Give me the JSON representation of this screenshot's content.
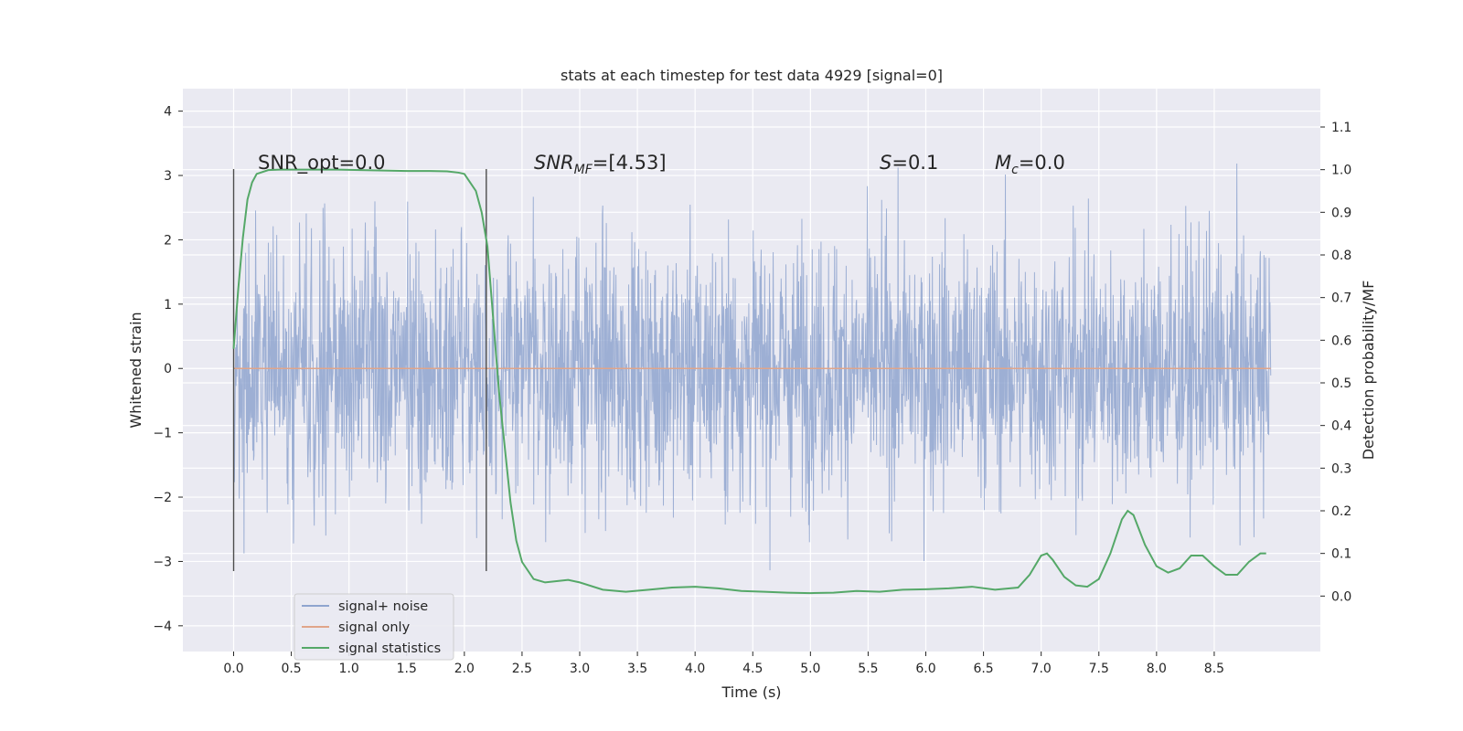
{
  "chart_data": {
    "type": "line",
    "title": "stats at each timestep for test data 4929 [signal=0]",
    "xlabel": "Time (s)",
    "ylabel_left": "Whitened strain",
    "ylabel_right": "Detection probability/MF",
    "xlim": [
      -0.44,
      9.42
    ],
    "ylim_left": [
      -4.4,
      4.35
    ],
    "ylim_right": [
      -0.13,
      1.19
    ],
    "grid": true,
    "x_ticks": [
      "0.0",
      "0.5",
      "1.0",
      "1.5",
      "2.0",
      "2.5",
      "3.0",
      "3.5",
      "4.0",
      "4.5",
      "5.0",
      "5.5",
      "6.0",
      "6.5",
      "7.0",
      "7.5",
      "8.0",
      "8.5"
    ],
    "y_ticks_left": [
      "−4",
      "−3",
      "−2",
      "−1",
      "0",
      "1",
      "2",
      "3",
      "4"
    ],
    "y_ticks_right": [
      "0.0",
      "0.1",
      "0.2",
      "0.3",
      "0.4",
      "0.5",
      "0.6",
      "0.7",
      "0.8",
      "0.9",
      "1.0",
      "1.1"
    ],
    "legend": {
      "placement": "lower-left",
      "entries": [
        {
          "label": "signal+ noise",
          "color": "#8fa5cf"
        },
        {
          "label": "signal only",
          "color": "#e0a58a"
        },
        {
          "label": "signal statistics",
          "color": "#55a868"
        }
      ]
    },
    "annotations": {
      "snr_opt": "SNR_opt=0.0",
      "snr_mf_main": "SNR",
      "snr_mf_sub": "MF",
      "snr_mf_value": "=[4.53]",
      "s_main": "S",
      "s_value": "=0.1",
      "mc_main": "M",
      "mc_sub": "c",
      "mc_value": "=0.0"
    },
    "vertical_markers_x": [
      0.0,
      2.19
    ],
    "signal_noise": {
      "x_start": 0.0,
      "x_end": 8.99,
      "typical_band": [
        -2.5,
        2.5
      ],
      "max": 3.97,
      "min": -4.02
    },
    "signal_only": {
      "value": 0.0
    },
    "signal_statistics": {
      "axis": "right",
      "x": [
        0.0,
        0.04,
        0.08,
        0.12,
        0.16,
        0.2,
        0.3,
        0.4,
        0.5,
        0.7,
        0.9,
        1.1,
        1.3,
        1.5,
        1.7,
        1.85,
        1.95,
        2.0,
        2.05,
        2.1,
        2.15,
        2.2,
        2.25,
        2.3,
        2.35,
        2.4,
        2.45,
        2.5,
        2.6,
        2.7,
        2.8,
        2.9,
        3.0,
        3.2,
        3.4,
        3.6,
        3.8,
        4.0,
        4.2,
        4.4,
        4.6,
        4.8,
        5.0,
        5.2,
        5.4,
        5.6,
        5.8,
        6.0,
        6.2,
        6.4,
        6.6,
        6.8,
        6.9,
        7.0,
        7.05,
        7.1,
        7.2,
        7.3,
        7.4,
        7.5,
        7.6,
        7.7,
        7.75,
        7.8,
        7.9,
        8.0,
        8.1,
        8.2,
        8.3,
        8.4,
        8.5,
        8.6,
        8.7,
        8.8,
        8.9,
        8.95
      ],
      "values": [
        0.58,
        0.72,
        0.84,
        0.93,
        0.97,
        0.99,
        0.999,
        1.0,
        1.0,
        1.0,
        1.0,
        0.999,
        0.998,
        0.997,
        0.997,
        0.996,
        0.993,
        0.99,
        0.97,
        0.95,
        0.9,
        0.82,
        0.65,
        0.48,
        0.35,
        0.22,
        0.13,
        0.08,
        0.04,
        0.032,
        0.035,
        0.038,
        0.032,
        0.015,
        0.01,
        0.015,
        0.02,
        0.022,
        0.018,
        0.012,
        0.01,
        0.008,
        0.007,
        0.008,
        0.012,
        0.01,
        0.015,
        0.016,
        0.018,
        0.022,
        0.015,
        0.02,
        0.05,
        0.095,
        0.1,
        0.085,
        0.045,
        0.025,
        0.022,
        0.04,
        0.1,
        0.18,
        0.2,
        0.19,
        0.12,
        0.07,
        0.055,
        0.065,
        0.095,
        0.095,
        0.07,
        0.05,
        0.05,
        0.08,
        0.1,
        0.1
      ]
    }
  }
}
